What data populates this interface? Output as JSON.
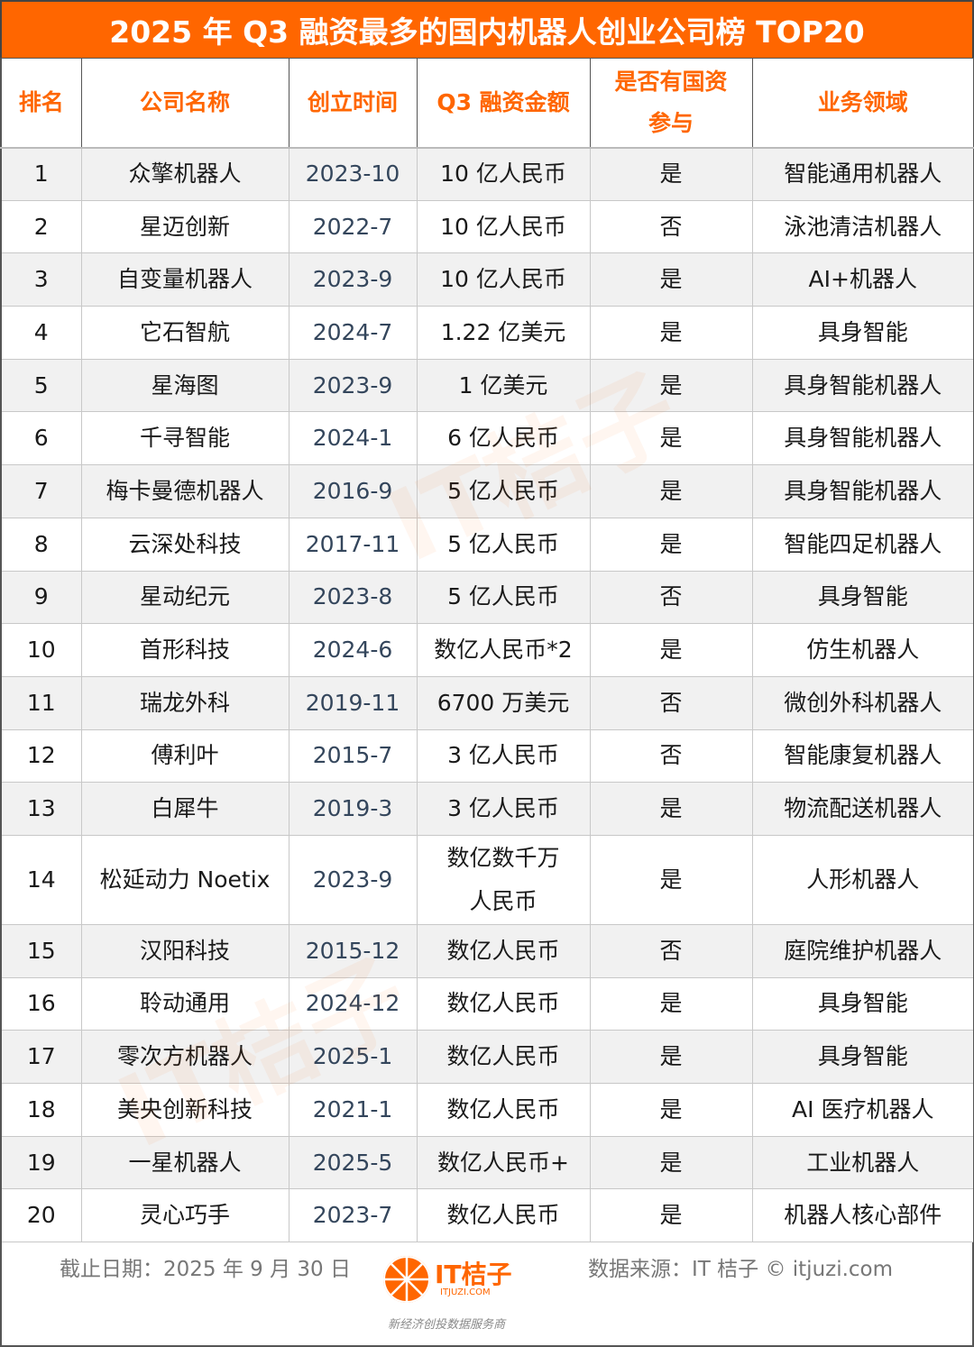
{
  "title": "2025 年 Q3 融资最多的国内机器人创业公司榜 TOP20",
  "headers": [
    "排名",
    "公司名称",
    "创立时间",
    "Q3 融资金额",
    "是否有国资参与",
    "业务领域"
  ],
  "rows": [
    [
      "1",
      "众擎机器人",
      "2023-10",
      "10 亿人民币",
      "是",
      "智能通用机器人"
    ],
    [
      "2",
      "星迈创新",
      "2022-7",
      "10 亿人民币",
      "否",
      "泳池清洁机器人"
    ],
    [
      "3",
      "自变量机器人",
      "2023-9",
      "10 亿人民币",
      "是",
      "AI+机器人"
    ],
    [
      "4",
      "它石智航",
      "2024-7",
      "1.22 亿美元",
      "是",
      "具身智能"
    ],
    [
      "5",
      "星海图",
      "2023-9",
      "1 亿美元",
      "是",
      "具身智能机器人"
    ],
    [
      "6",
      "千寻智能",
      "2024-1",
      "6 亿人民币",
      "是",
      "具身智能机器人"
    ],
    [
      "7",
      "梅卡曼德机器人",
      "2016-9",
      "5 亿人民币",
      "是",
      "具身智能机器人"
    ],
    [
      "8",
      "云深处科技",
      "2017-11",
      "5 亿人民币",
      "是",
      "智能四足机器人"
    ],
    [
      "9",
      "星动纪元",
      "2023-8",
      "5 亿人民币",
      "否",
      "具身智能"
    ],
    [
      "10",
      "首形科技",
      "2024-6",
      "数亿人民币*2",
      "是",
      "仿生机器人"
    ],
    [
      "11",
      "瑞龙外科",
      "2019-11",
      "6700 万美元",
      "否",
      "微创外科机器人"
    ],
    [
      "12",
      "傅利叶",
      "2015-7",
      "3 亿人民币",
      "否",
      "智能康复机器人"
    ],
    [
      "13",
      "白犀牛",
      "2019-3",
      "3 亿人民币",
      "是",
      "物流配送机器人"
    ],
    [
      "14",
      "松延动力 Noetix",
      "2023-9",
      "数亿数千万人民币",
      "是",
      "人形机器人"
    ],
    [
      "15",
      "汉阳科技",
      "2015-12",
      "数亿人民币",
      "否",
      "庭院维护机器人"
    ],
    [
      "16",
      "聆动通用",
      "2024-12",
      "数亿人民币",
      "是",
      "具身智能"
    ],
    [
      "17",
      "零次方机器人",
      "2025-1",
      "数亿人民币",
      "是",
      "具身智能"
    ],
    [
      "18",
      "美央创新科技",
      "2021-1",
      "数亿人民币",
      "是",
      "AI 医疗机器人"
    ],
    [
      "19",
      "一星机器人",
      "2025-5",
      "数亿人民币+",
      "是",
      "工业机器人"
    ],
    [
      "20",
      "灵心巧手",
      "2023-7",
      "数亿人民币",
      "是",
      "机器人核心部件"
    ]
  ],
  "footer": {
    "date": "截止日期：2025 年 9 月 30 日",
    "source": "数据来源：IT 桔子 © itjuzi.com",
    "logo_text": "IT桔子",
    "logo_sub": "ITJUZI.COM",
    "tagline": "新经济创投数据服务商",
    "watermark": "IT桔子"
  },
  "colors": {
    "accent": "#ff6600",
    "row_alt": "#f1f1f1",
    "year_text": "#34465c"
  }
}
